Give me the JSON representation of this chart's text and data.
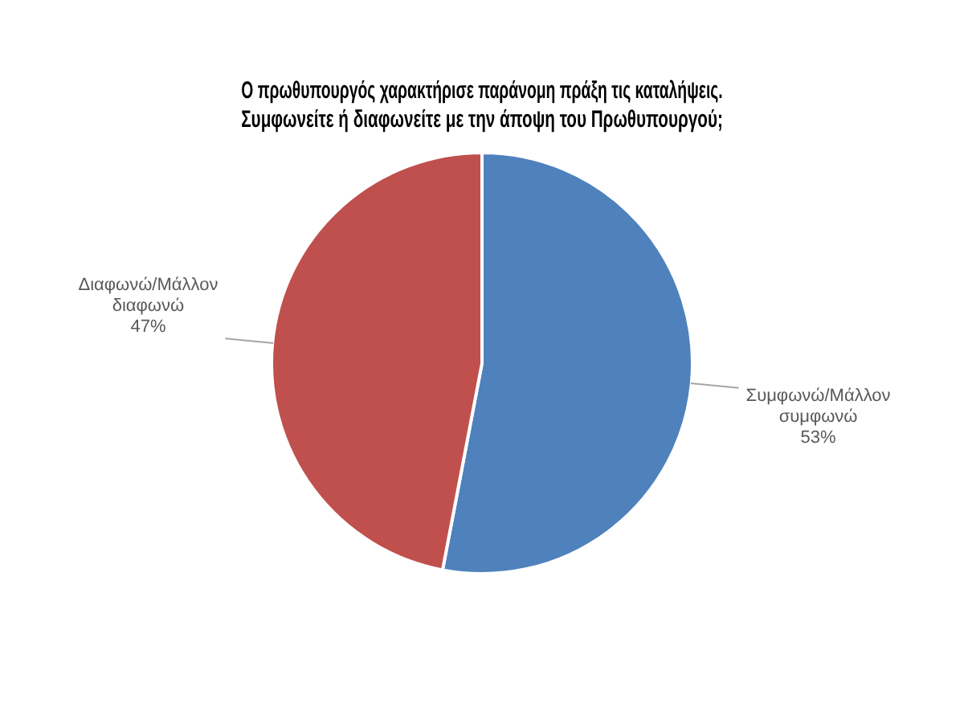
{
  "chart_data": {
    "type": "pie",
    "title": "Ο πρωθυπουργός χαρακτήρισε παράνομη πράξη τις καταλήψεις.\nΣυμφωνείτε ή διαφωνείτε με την άποψη του Πρωθυπουργού;",
    "categories": [
      "Συμφωνώ/Μάλλον συμφωνώ",
      "Διαφωνώ/Μάλλον διαφωνώ"
    ],
    "values": [
      53,
      47
    ],
    "colors": [
      "#4f81bd",
      "#c0504d"
    ],
    "value_labels": [
      "53%",
      "47%"
    ],
    "legend": false
  }
}
